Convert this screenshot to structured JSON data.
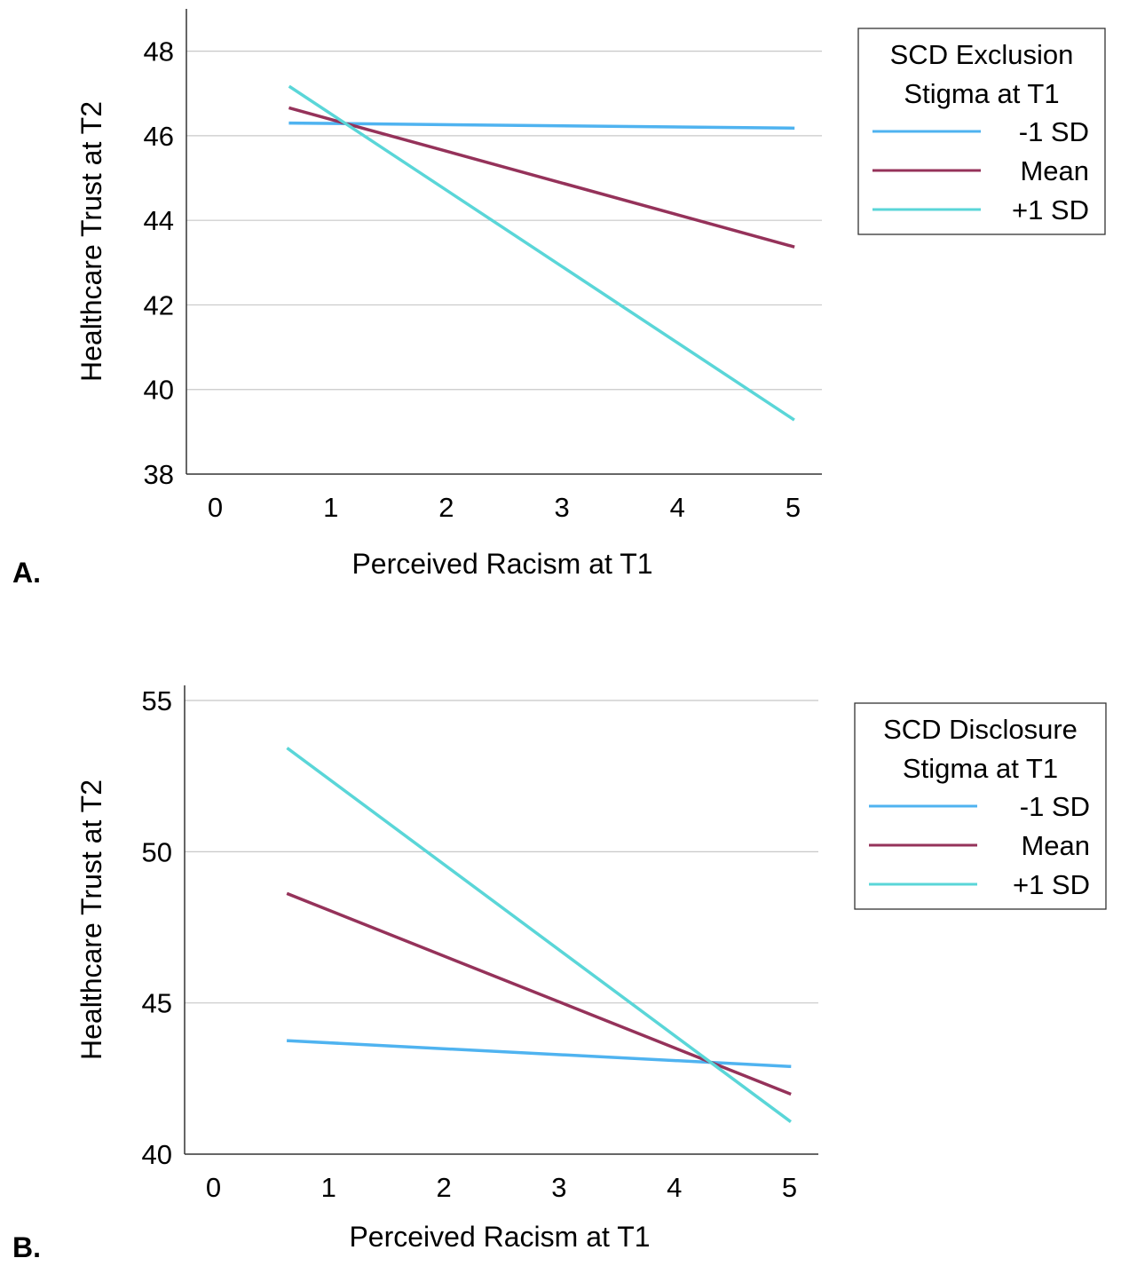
{
  "chart_data": [
    {
      "panel_label": "A.",
      "type": "line",
      "ylabel": "Healthcare Trust at T2",
      "xlabel": "Perceived Racism at T1",
      "xlim": [
        -0.25,
        5.25
      ],
      "ylim": [
        38,
        49
      ],
      "xticks": [
        "0",
        "1",
        "2",
        "3",
        "4",
        "5"
      ],
      "yticks": [
        "38",
        "40",
        "42",
        "44",
        "46",
        "48"
      ],
      "grid": "horizontal",
      "legend": {
        "title_lines": [
          "SCD Exclusion",
          "Stigma at T1"
        ],
        "placement": "right-top"
      },
      "series": [
        {
          "name": "-1 SD",
          "color": "#4fb3f0",
          "x": [
            0.65,
            5.0
          ],
          "y": [
            46.3,
            46.18
          ]
        },
        {
          "name": "Mean",
          "color": "#95325a",
          "x": [
            0.65,
            5.0
          ],
          "y": [
            46.65,
            43.38
          ]
        },
        {
          "name": "+1 SD",
          "color": "#5ad6d8",
          "x": [
            0.65,
            5.0
          ],
          "y": [
            47.15,
            39.3
          ]
        }
      ]
    },
    {
      "panel_label": "B.",
      "type": "line",
      "ylabel": "Healthcare Trust at T2",
      "xlabel": "Perceived Racism at T1",
      "xlim": [
        -0.25,
        5.25
      ],
      "ylim": [
        40,
        55.5
      ],
      "xticks": [
        "0",
        "1",
        "2",
        "3",
        "4",
        "5"
      ],
      "yticks": [
        "40",
        "45",
        "50",
        "55"
      ],
      "grid": "horizontal",
      "legend": {
        "title_lines": [
          "SCD Disclosure",
          "Stigma at T1"
        ],
        "placement": "right-top"
      },
      "series": [
        {
          "name": "-1 SD",
          "color": "#4fb3f0",
          "x": [
            0.65,
            5.0
          ],
          "y": [
            43.75,
            42.9
          ]
        },
        {
          "name": "Mean",
          "color": "#95325a",
          "x": [
            0.65,
            5.0
          ],
          "y": [
            48.6,
            42.0
          ]
        },
        {
          "name": "+1 SD",
          "color": "#5ad6d8",
          "x": [
            0.65,
            5.0
          ],
          "y": [
            53.4,
            41.1
          ]
        }
      ]
    }
  ]
}
